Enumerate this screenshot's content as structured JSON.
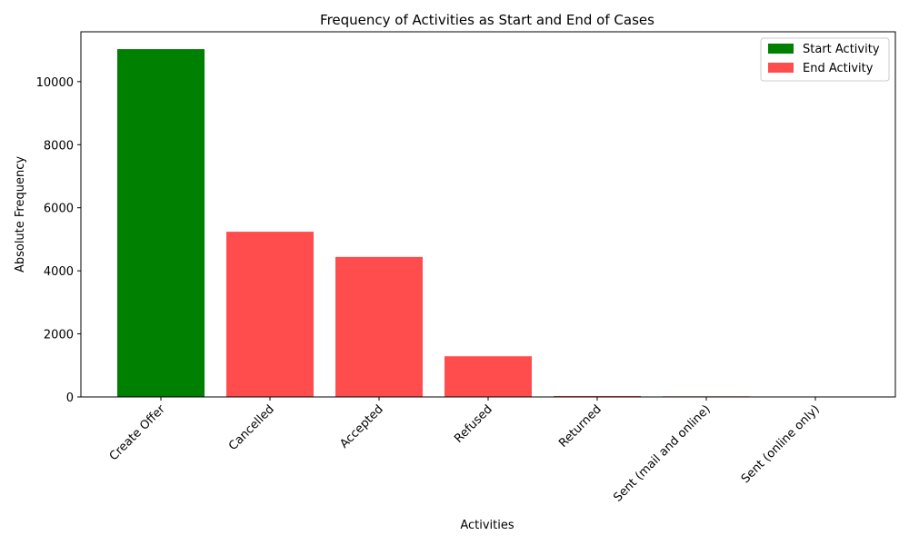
{
  "chart_data": {
    "type": "bar",
    "title": "Frequency of Activities as Start and End of Cases",
    "xlabel": "Activities",
    "ylabel": "Absolute Frequency",
    "categories": [
      "Create Offer",
      "Cancelled",
      "Accepted",
      "Refused",
      "Returned",
      "Sent (mail and online)",
      "Sent (online only)"
    ],
    "series": [
      {
        "name": "Start Activity",
        "color": "#008000",
        "values": [
          11030,
          0,
          0,
          0,
          0,
          0,
          0
        ]
      },
      {
        "name": "End Activity",
        "color": "#ff4d4d",
        "values": [
          0,
          5240,
          4440,
          1290,
          30,
          20,
          5
        ]
      }
    ],
    "ylim": [
      0,
      11580
    ],
    "yticks": [
      0,
      2000,
      4000,
      6000,
      8000,
      10000
    ],
    "ytick_labels": [
      "0",
      "2000",
      "4000",
      "6000",
      "8000",
      "10000"
    ],
    "legend": {
      "position": "top-right",
      "entries": [
        "Start Activity",
        "End Activity"
      ]
    },
    "grid": false
  }
}
